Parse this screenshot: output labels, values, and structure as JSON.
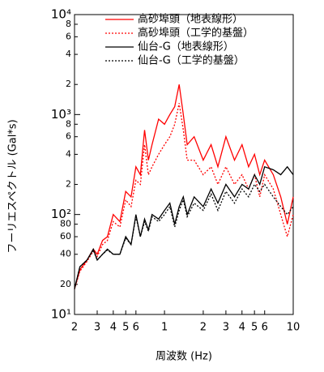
{
  "chart_data": {
    "type": "line",
    "x_label": "周波数 (Hz)",
    "y_label": "フーリエスペクトル (Gal*s)",
    "xlog": true,
    "ylog": true,
    "xlim": [
      0.2,
      10
    ],
    "ylim": [
      10,
      10000
    ],
    "xticks": [
      {
        "value": 0.2,
        "label": "2"
      },
      {
        "value": 0.3,
        "label": "3"
      },
      {
        "value": 0.4,
        "label": "4"
      },
      {
        "value": 0.5,
        "label": "5"
      },
      {
        "value": 0.6,
        "label": "6"
      },
      1,
      2,
      3,
      4,
      5,
      6,
      10
    ],
    "yticks": [
      {
        "value": 10,
        "label": "10¹"
      },
      20,
      40,
      60,
      80,
      {
        "value": 100,
        "label": "10²"
      },
      {
        "value": 200,
        "label": "2"
      },
      {
        "value": 400,
        "label": "4"
      },
      {
        "value": 600,
        "label": "6"
      },
      {
        "value": 800,
        "label": "8"
      },
      {
        "value": 1000,
        "label": "10³"
      },
      {
        "value": 2000,
        "label": "2"
      },
      {
        "value": 4000,
        "label": "4"
      },
      {
        "value": 6000,
        "label": "6"
      },
      {
        "value": 8000,
        "label": "8"
      },
      {
        "value": 10000,
        "label": "10⁴"
      }
    ],
    "x": [
      0.2,
      0.22,
      0.25,
      0.28,
      0.3,
      0.33,
      0.36,
      0.4,
      0.45,
      0.5,
      0.55,
      0.6,
      0.65,
      0.7,
      0.75,
      0.8,
      0.9,
      1.0,
      1.1,
      1.2,
      1.3,
      1.4,
      1.5,
      1.7,
      2,
      2.3,
      2.6,
      3,
      3.5,
      4,
      4.5,
      5,
      5.5,
      6,
      7,
      8,
      9,
      10
    ],
    "series": [
      {
        "name": "高砂埠頭（地表線形）",
        "color": "#ff0000",
        "dash": "solid",
        "values": [
          18,
          28,
          35,
          45,
          40,
          55,
          60,
          100,
          85,
          170,
          150,
          300,
          250,
          700,
          350,
          500,
          900,
          800,
          1000,
          1200,
          2000,
          1000,
          500,
          600,
          350,
          500,
          300,
          600,
          350,
          500,
          300,
          400,
          250,
          350,
          250,
          150,
          80,
          150
        ]
      },
      {
        "name": "高砂埠頭（工学的基盤）",
        "color": "#ff0000",
        "dash": "dotted",
        "values": [
          18,
          27,
          34,
          43,
          38,
          50,
          55,
          85,
          75,
          140,
          120,
          220,
          200,
          500,
          250,
          300,
          400,
          500,
          600,
          800,
          1300,
          700,
          350,
          350,
          250,
          300,
          200,
          300,
          200,
          250,
          180,
          250,
          150,
          250,
          180,
          100,
          60,
          100
        ]
      },
      {
        "name": "仙台-G（地表線形）",
        "color": "#000000",
        "dash": "solid",
        "values": [
          18,
          30,
          35,
          45,
          35,
          40,
          45,
          40,
          40,
          60,
          50,
          100,
          60,
          90,
          70,
          100,
          90,
          110,
          130,
          80,
          120,
          150,
          100,
          150,
          120,
          180,
          130,
          200,
          150,
          200,
          180,
          250,
          200,
          300,
          280,
          250,
          300,
          250
        ]
      },
      {
        "name": "仙台-G（工学的基盤）",
        "color": "#000000",
        "dash": "dotted",
        "values": [
          18,
          30,
          35,
          44,
          35,
          40,
          44,
          40,
          40,
          58,
          50,
          95,
          60,
          85,
          68,
          95,
          85,
          100,
          120,
          75,
          110,
          140,
          95,
          130,
          110,
          160,
          110,
          170,
          130,
          180,
          150,
          200,
          170,
          200,
          150,
          120,
          100,
          120
        ]
      }
    ]
  }
}
